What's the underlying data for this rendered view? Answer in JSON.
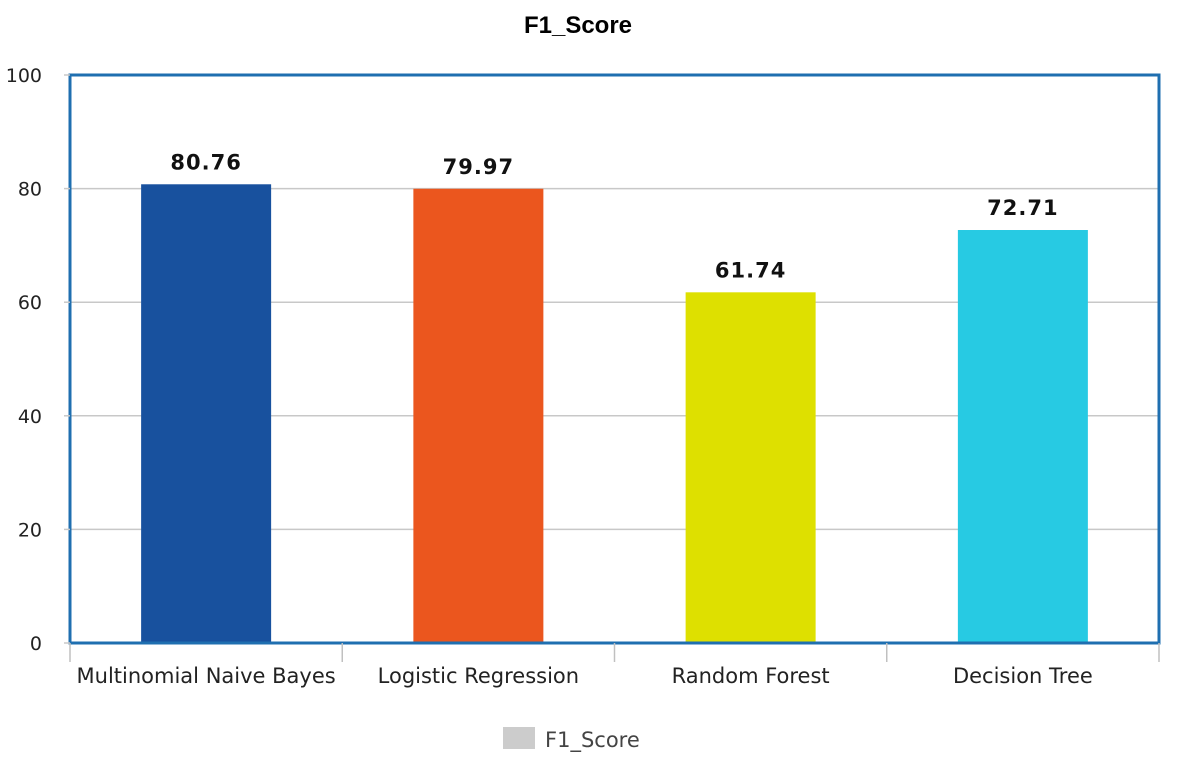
{
  "chart_data": {
    "type": "bar",
    "title": "F1_Score",
    "xlabel": "",
    "ylabel": "",
    "categories": [
      "Multinomial Naive Bayes",
      "Logistic Regression",
      "Random Forest",
      "Decision Tree"
    ],
    "series": [
      {
        "name": "F1_Score",
        "values": [
          80.76,
          79.97,
          61.74,
          72.71
        ],
        "value_labels": [
          "80.76",
          "79.97",
          "61.74",
          "72.71"
        ],
        "colors": [
          "#18519e",
          "#eb561e",
          "#dee000",
          "#27cae3"
        ]
      }
    ],
    "ylim": [
      0,
      100
    ],
    "yticks": [
      0,
      20,
      40,
      60,
      80,
      100
    ],
    "grid": true,
    "legend": {
      "position": "bottom",
      "label": "F1_Score",
      "swatch_color": "#cccccc"
    },
    "frame_color": "#1f6fb0",
    "grid_color": "#c8c8c8"
  }
}
